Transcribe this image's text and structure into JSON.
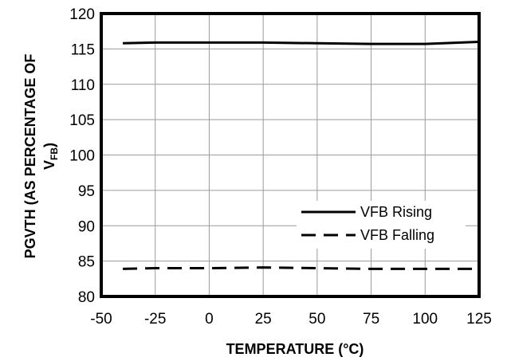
{
  "chart_data": {
    "type": "line",
    "xlabel": "TEMPERATURE (°C)",
    "ylabel_main": "PGVTH (AS PERCENTAGE OF",
    "ylabel_sub_prefix": "V",
    "ylabel_sub_subscript": "FB",
    "ylabel_sub_suffix": ")",
    "xlim": [
      -50,
      125
    ],
    "ylim": [
      80,
      120
    ],
    "xticks": [
      -50,
      -25,
      0,
      25,
      50,
      75,
      100,
      125
    ],
    "yticks": [
      80,
      85,
      90,
      95,
      100,
      105,
      110,
      115,
      120
    ],
    "grid": true,
    "legend_position": "right-middle",
    "series": [
      {
        "name": "VFB Rising",
        "style": "solid",
        "color": "#000000",
        "x": [
          -40,
          -25,
          0,
          25,
          50,
          75,
          100,
          125
        ],
        "y": [
          115.8,
          115.9,
          115.9,
          115.9,
          115.8,
          115.7,
          115.7,
          116.0
        ]
      },
      {
        "name": "VFB Falling",
        "style": "dashed",
        "color": "#000000",
        "x": [
          -40,
          -25,
          0,
          25,
          50,
          75,
          100,
          125
        ],
        "y": [
          83.9,
          84.0,
          84.0,
          84.1,
          84.0,
          83.9,
          83.9,
          83.9
        ]
      }
    ]
  }
}
